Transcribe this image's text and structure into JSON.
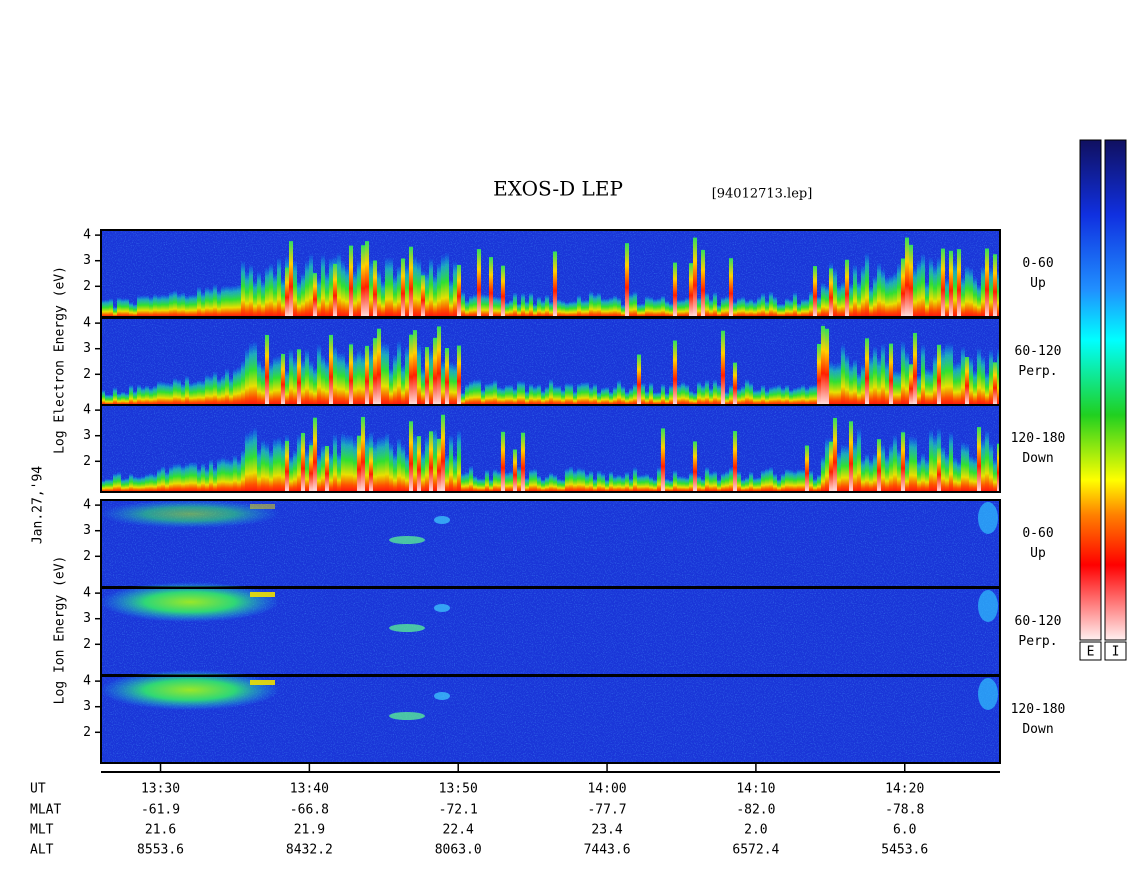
{
  "chart_data": {
    "type": "spectrogram",
    "title": "EXOS-D LEP",
    "subtitle": "[94012713.lep]",
    "y_labels": [
      "Log  Electron  Energy (eV)",
      "Log  Ion  Energy (eV)"
    ],
    "date": "Jan.27,'94",
    "panels": [
      {
        "angle": "0-60",
        "direction": "Up"
      },
      {
        "angle": "60-120",
        "direction": "Perp."
      },
      {
        "angle": "120-180",
        "direction": "Down"
      },
      {
        "angle": "0-60",
        "direction": "Up"
      },
      {
        "angle": "60-120",
        "direction": "Perp."
      },
      {
        "angle": "120-180",
        "direction": "Down"
      }
    ],
    "ylim": [
      0.8,
      4.2
    ],
    "yticks": [
      2,
      3,
      4
    ],
    "xlim": [
      26,
      86.4
    ],
    "xticks": [
      {
        "value": 30,
        "label": "13:30"
      },
      {
        "value": 40,
        "label": "13:40"
      },
      {
        "value": 50,
        "label": "13:50"
      },
      {
        "value": 60,
        "label": "14:00"
      },
      {
        "value": 70,
        "label": "14:10"
      },
      {
        "value": 80,
        "label": "14:20"
      }
    ],
    "ephemeris": {
      "header": "UT",
      "rows": [
        {
          "name": "MLAT",
          "values": [
            "-61.9",
            "-66.8",
            "-72.1",
            "-77.7",
            "-82.0",
            "-78.8"
          ]
        },
        {
          "name": "MLT",
          "values": [
            "21.6",
            "21.9",
            "22.4",
            "23.4",
            "2.0",
            "6.0"
          ]
        },
        {
          "name": "ALT",
          "values": [
            "8553.6",
            "8432.2",
            "8063.0",
            "7443.6",
            "6572.4",
            "5453.6"
          ]
        }
      ]
    },
    "colorbar_labels": [
      "E",
      "I"
    ]
  }
}
